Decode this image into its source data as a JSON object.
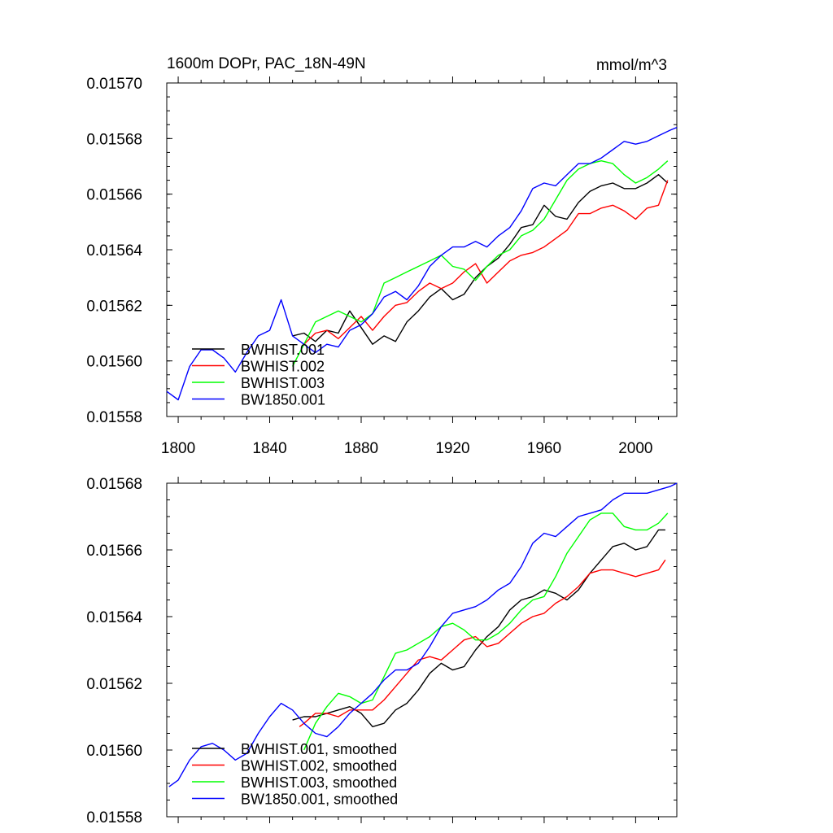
{
  "chart_data": [
    {
      "type": "line",
      "title_left": "1600m DOPr, PAC_18N-49N",
      "title_right": "mmol/m^3",
      "xlim": [
        1795,
        2018
      ],
      "ylim": [
        0.01558,
        0.0157
      ],
      "x_ticks": [
        1800,
        1840,
        1880,
        1920,
        1960,
        2000
      ],
      "y_ticks": [
        "0.01558",
        "0.01560",
        "0.01562",
        "0.01564",
        "0.01566",
        "0.01568",
        "0.01570"
      ],
      "legend": {
        "placement": "bottom-left"
      },
      "series": [
        {
          "name": "BWHIST.001",
          "color": "#000000",
          "x": [
            1850,
            1855,
            1860,
            1865,
            1870,
            1875,
            1880,
            1885,
            1890,
            1895,
            1900,
            1905,
            1910,
            1915,
            1920,
            1925,
            1930,
            1935,
            1940,
            1945,
            1950,
            1955,
            1960,
            1965,
            1970,
            1975,
            1980,
            1985,
            1990,
            1995,
            2000,
            2005,
            2010,
            2014
          ],
          "y": [
            0.015609,
            0.01561,
            0.015607,
            0.015611,
            0.01561,
            0.015618,
            0.015612,
            0.015606,
            0.015609,
            0.015607,
            0.015614,
            0.015618,
            0.015623,
            0.015626,
            0.015622,
            0.015624,
            0.01563,
            0.015634,
            0.015637,
            0.015642,
            0.015648,
            0.015649,
            0.015656,
            0.015652,
            0.015651,
            0.015657,
            0.015661,
            0.015663,
            0.015664,
            0.015662,
            0.015662,
            0.015664,
            0.015667,
            0.015664
          ]
        },
        {
          "name": "BWHIST.002",
          "color": "#ff0000",
          "x": [
            1855,
            1860,
            1865,
            1870,
            1875,
            1880,
            1885,
            1890,
            1895,
            1900,
            1905,
            1910,
            1915,
            1920,
            1925,
            1930,
            1935,
            1940,
            1945,
            1950,
            1955,
            1960,
            1965,
            1970,
            1975,
            1980,
            1985,
            1990,
            1995,
            2000,
            2005,
            2010,
            2014
          ],
          "y": [
            0.015606,
            0.01561,
            0.015611,
            0.015608,
            0.015612,
            0.015616,
            0.015611,
            0.015616,
            0.01562,
            0.015621,
            0.015625,
            0.015628,
            0.015626,
            0.015628,
            0.015632,
            0.015635,
            0.015628,
            0.015632,
            0.015636,
            0.015638,
            0.015639,
            0.015641,
            0.015644,
            0.015647,
            0.015653,
            0.015653,
            0.015655,
            0.015656,
            0.015654,
            0.015651,
            0.015655,
            0.015656,
            0.015665
          ]
        },
        {
          "name": "BWHIST.003",
          "color": "#00ff00",
          "x": [
            1850,
            1855,
            1860,
            1865,
            1870,
            1875,
            1880,
            1885,
            1890,
            1895,
            1900,
            1905,
            1910,
            1915,
            1920,
            1925,
            1930,
            1935,
            1940,
            1945,
            1950,
            1955,
            1960,
            1965,
            1970,
            1975,
            1980,
            1985,
            1990,
            1995,
            2000,
            2005,
            2010,
            2014
          ],
          "y": [
            0.015598,
            0.015606,
            0.015614,
            0.015616,
            0.015618,
            0.015616,
            0.015614,
            0.015617,
            0.015628,
            0.01563,
            0.015632,
            0.015634,
            0.015636,
            0.015638,
            0.015634,
            0.015633,
            0.015629,
            0.015634,
            0.015638,
            0.01564,
            0.015645,
            0.015647,
            0.015651,
            0.015658,
            0.015665,
            0.015669,
            0.015671,
            0.015672,
            0.015671,
            0.015667,
            0.015664,
            0.015666,
            0.015669,
            0.015672
          ]
        },
        {
          "name": "BW1850.001",
          "color": "#0000ff",
          "x": [
            1795,
            1800,
            1805,
            1810,
            1815,
            1820,
            1825,
            1830,
            1835,
            1840,
            1845,
            1850,
            1855,
            1860,
            1865,
            1870,
            1875,
            1880,
            1885,
            1890,
            1895,
            1900,
            1905,
            1910,
            1915,
            1920,
            1925,
            1930,
            1935,
            1940,
            1945,
            1950,
            1955,
            1960,
            1965,
            1970,
            1975,
            1980,
            1985,
            1990,
            1995,
            2000,
            2005,
            2010,
            2015,
            2018
          ],
          "y": [
            0.015589,
            0.015586,
            0.015598,
            0.015604,
            0.015604,
            0.015601,
            0.015596,
            0.015603,
            0.015609,
            0.015611,
            0.015622,
            0.015609,
            0.015606,
            0.015603,
            0.015606,
            0.015605,
            0.015611,
            0.015613,
            0.015617,
            0.015623,
            0.015625,
            0.015622,
            0.015627,
            0.015634,
            0.015638,
            0.015641,
            0.015641,
            0.015643,
            0.015641,
            0.015645,
            0.015648,
            0.015654,
            0.015662,
            0.015664,
            0.015663,
            0.015667,
            0.015671,
            0.015671,
            0.015673,
            0.015676,
            0.015679,
            0.015678,
            0.015679,
            0.015681,
            0.015683,
            0.015684
          ]
        }
      ]
    },
    {
      "type": "line",
      "xlim": [
        1795,
        2018
      ],
      "ylim": [
        0.01558,
        0.01568
      ],
      "x_ticks": [
        1800,
        1840,
        1880,
        1920,
        1960,
        2000
      ],
      "y_ticks": [
        "0.01558",
        "0.01560",
        "0.01562",
        "0.01564",
        "0.01566",
        "0.01568"
      ],
      "legend": {
        "placement": "bottom-left"
      },
      "series": [
        {
          "name": "BWHIST.001, smoothed",
          "color": "#000000",
          "x": [
            1850,
            1855,
            1860,
            1865,
            1870,
            1875,
            1880,
            1885,
            1890,
            1895,
            1900,
            1905,
            1910,
            1915,
            1920,
            1925,
            1930,
            1935,
            1940,
            1945,
            1950,
            1955,
            1960,
            1965,
            1970,
            1975,
            1980,
            1985,
            1990,
            1995,
            2000,
            2005,
            2010,
            2013
          ],
          "y": [
            0.015609,
            0.01561,
            0.01561,
            0.015611,
            0.015612,
            0.015613,
            0.015611,
            0.015607,
            0.015608,
            0.015612,
            0.015614,
            0.015618,
            0.015623,
            0.015626,
            0.015624,
            0.015625,
            0.01563,
            0.015634,
            0.015637,
            0.015642,
            0.015645,
            0.015646,
            0.015648,
            0.015647,
            0.015645,
            0.015648,
            0.015653,
            0.015657,
            0.015661,
            0.015662,
            0.01566,
            0.015661,
            0.015666,
            0.015666
          ]
        },
        {
          "name": "BWHIST.002, smoothed",
          "color": "#ff0000",
          "x": [
            1853,
            1855,
            1860,
            1865,
            1870,
            1875,
            1880,
            1885,
            1890,
            1895,
            1900,
            1905,
            1910,
            1915,
            1920,
            1925,
            1930,
            1935,
            1940,
            1945,
            1950,
            1955,
            1960,
            1965,
            1970,
            1975,
            1980,
            1985,
            1990,
            1995,
            2000,
            2005,
            2010,
            2013
          ],
          "y": [
            0.015607,
            0.015608,
            0.015611,
            0.015611,
            0.01561,
            0.015612,
            0.015612,
            0.015612,
            0.015615,
            0.015619,
            0.015623,
            0.015627,
            0.015628,
            0.015627,
            0.01563,
            0.015633,
            0.015634,
            0.015631,
            0.015632,
            0.015635,
            0.015638,
            0.01564,
            0.015641,
            0.015644,
            0.015646,
            0.015649,
            0.015653,
            0.015654,
            0.015654,
            0.015653,
            0.015652,
            0.015653,
            0.015654,
            0.015657
          ]
        },
        {
          "name": "BWHIST.003, smoothed",
          "color": "#00ff00",
          "x": [
            1855,
            1860,
            1865,
            1870,
            1875,
            1880,
            1885,
            1890,
            1895,
            1900,
            1905,
            1910,
            1915,
            1920,
            1925,
            1930,
            1935,
            1940,
            1945,
            1950,
            1955,
            1960,
            1965,
            1970,
            1975,
            1980,
            1985,
            1990,
            1995,
            2000,
            2005,
            2010,
            2014
          ],
          "y": [
            0.0156,
            0.015608,
            0.015613,
            0.015617,
            0.015616,
            0.015614,
            0.015615,
            0.015622,
            0.015629,
            0.01563,
            0.015632,
            0.015634,
            0.015637,
            0.015638,
            0.015636,
            0.015633,
            0.015633,
            0.015635,
            0.015638,
            0.015642,
            0.015645,
            0.015646,
            0.015652,
            0.015659,
            0.015664,
            0.015669,
            0.015671,
            0.015671,
            0.015667,
            0.015666,
            0.015666,
            0.015668,
            0.015671
          ]
        },
        {
          "name": "BW1850.001, smoothed",
          "color": "#0000ff",
          "x": [
            1796,
            1800,
            1805,
            1810,
            1815,
            1820,
            1825,
            1830,
            1835,
            1840,
            1845,
            1850,
            1855,
            1860,
            1865,
            1870,
            1875,
            1880,
            1885,
            1890,
            1895,
            1900,
            1905,
            1910,
            1915,
            1920,
            1925,
            1930,
            1935,
            1940,
            1945,
            1950,
            1955,
            1960,
            1965,
            1970,
            1975,
            1980,
            1985,
            1990,
            1995,
            2000,
            2005,
            2010,
            2015,
            2018
          ],
          "y": [
            0.015589,
            0.015591,
            0.015597,
            0.015601,
            0.015602,
            0.0156,
            0.015597,
            0.015599,
            0.015605,
            0.01561,
            0.015614,
            0.015612,
            0.015608,
            0.015605,
            0.015604,
            0.015607,
            0.015611,
            0.015614,
            0.015617,
            0.015621,
            0.015624,
            0.015624,
            0.015626,
            0.015631,
            0.015637,
            0.015641,
            0.015642,
            0.015643,
            0.015645,
            0.015648,
            0.01565,
            0.015655,
            0.015662,
            0.015665,
            0.015664,
            0.015667,
            0.01567,
            0.015671,
            0.015672,
            0.015675,
            0.015677,
            0.015677,
            0.015677,
            0.015678,
            0.015679,
            0.01568
          ]
        }
      ]
    }
  ]
}
